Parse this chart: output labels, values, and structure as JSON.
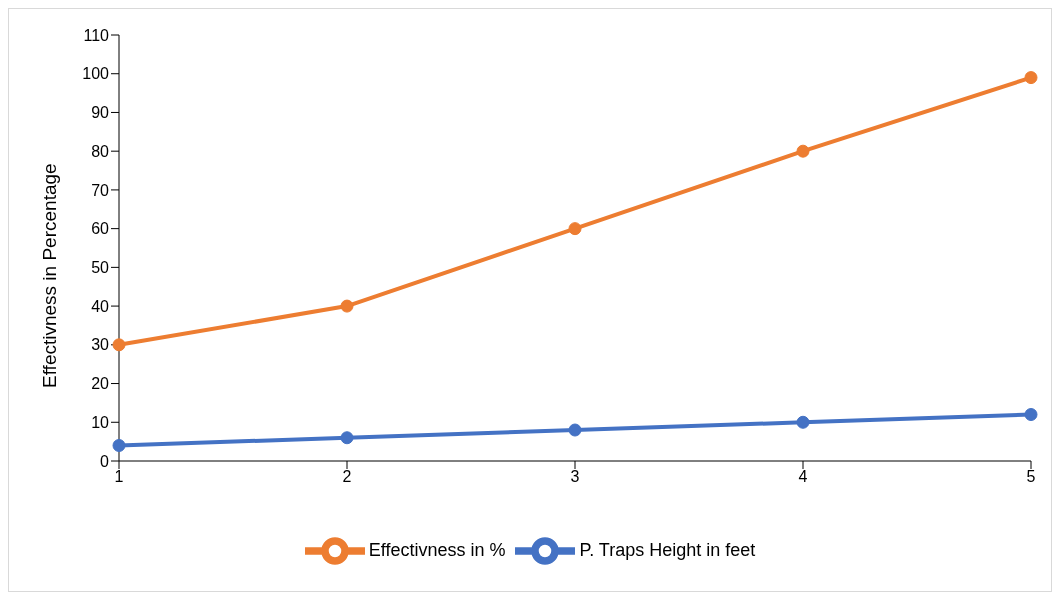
{
  "chart_data": {
    "type": "line",
    "ylabel": "Effectivness in Percentage",
    "categories": [
      "1",
      "2",
      "3",
      "4",
      "5"
    ],
    "series": [
      {
        "name": "P. Traps Height in feet",
        "color": "#4472c4",
        "values": [
          4,
          6,
          8,
          10,
          12
        ]
      },
      {
        "name": "Effectivness in %",
        "color": "#ed7d31",
        "values": [
          30,
          40,
          60,
          80,
          99
        ]
      }
    ],
    "ylim": [
      0,
      110
    ],
    "yticks": [
      0,
      10,
      20,
      30,
      40,
      50,
      60,
      70,
      80,
      90,
      100,
      110
    ],
    "grid": false,
    "legend": "bottom",
    "marker": "circle",
    "line_style": "solid"
  }
}
